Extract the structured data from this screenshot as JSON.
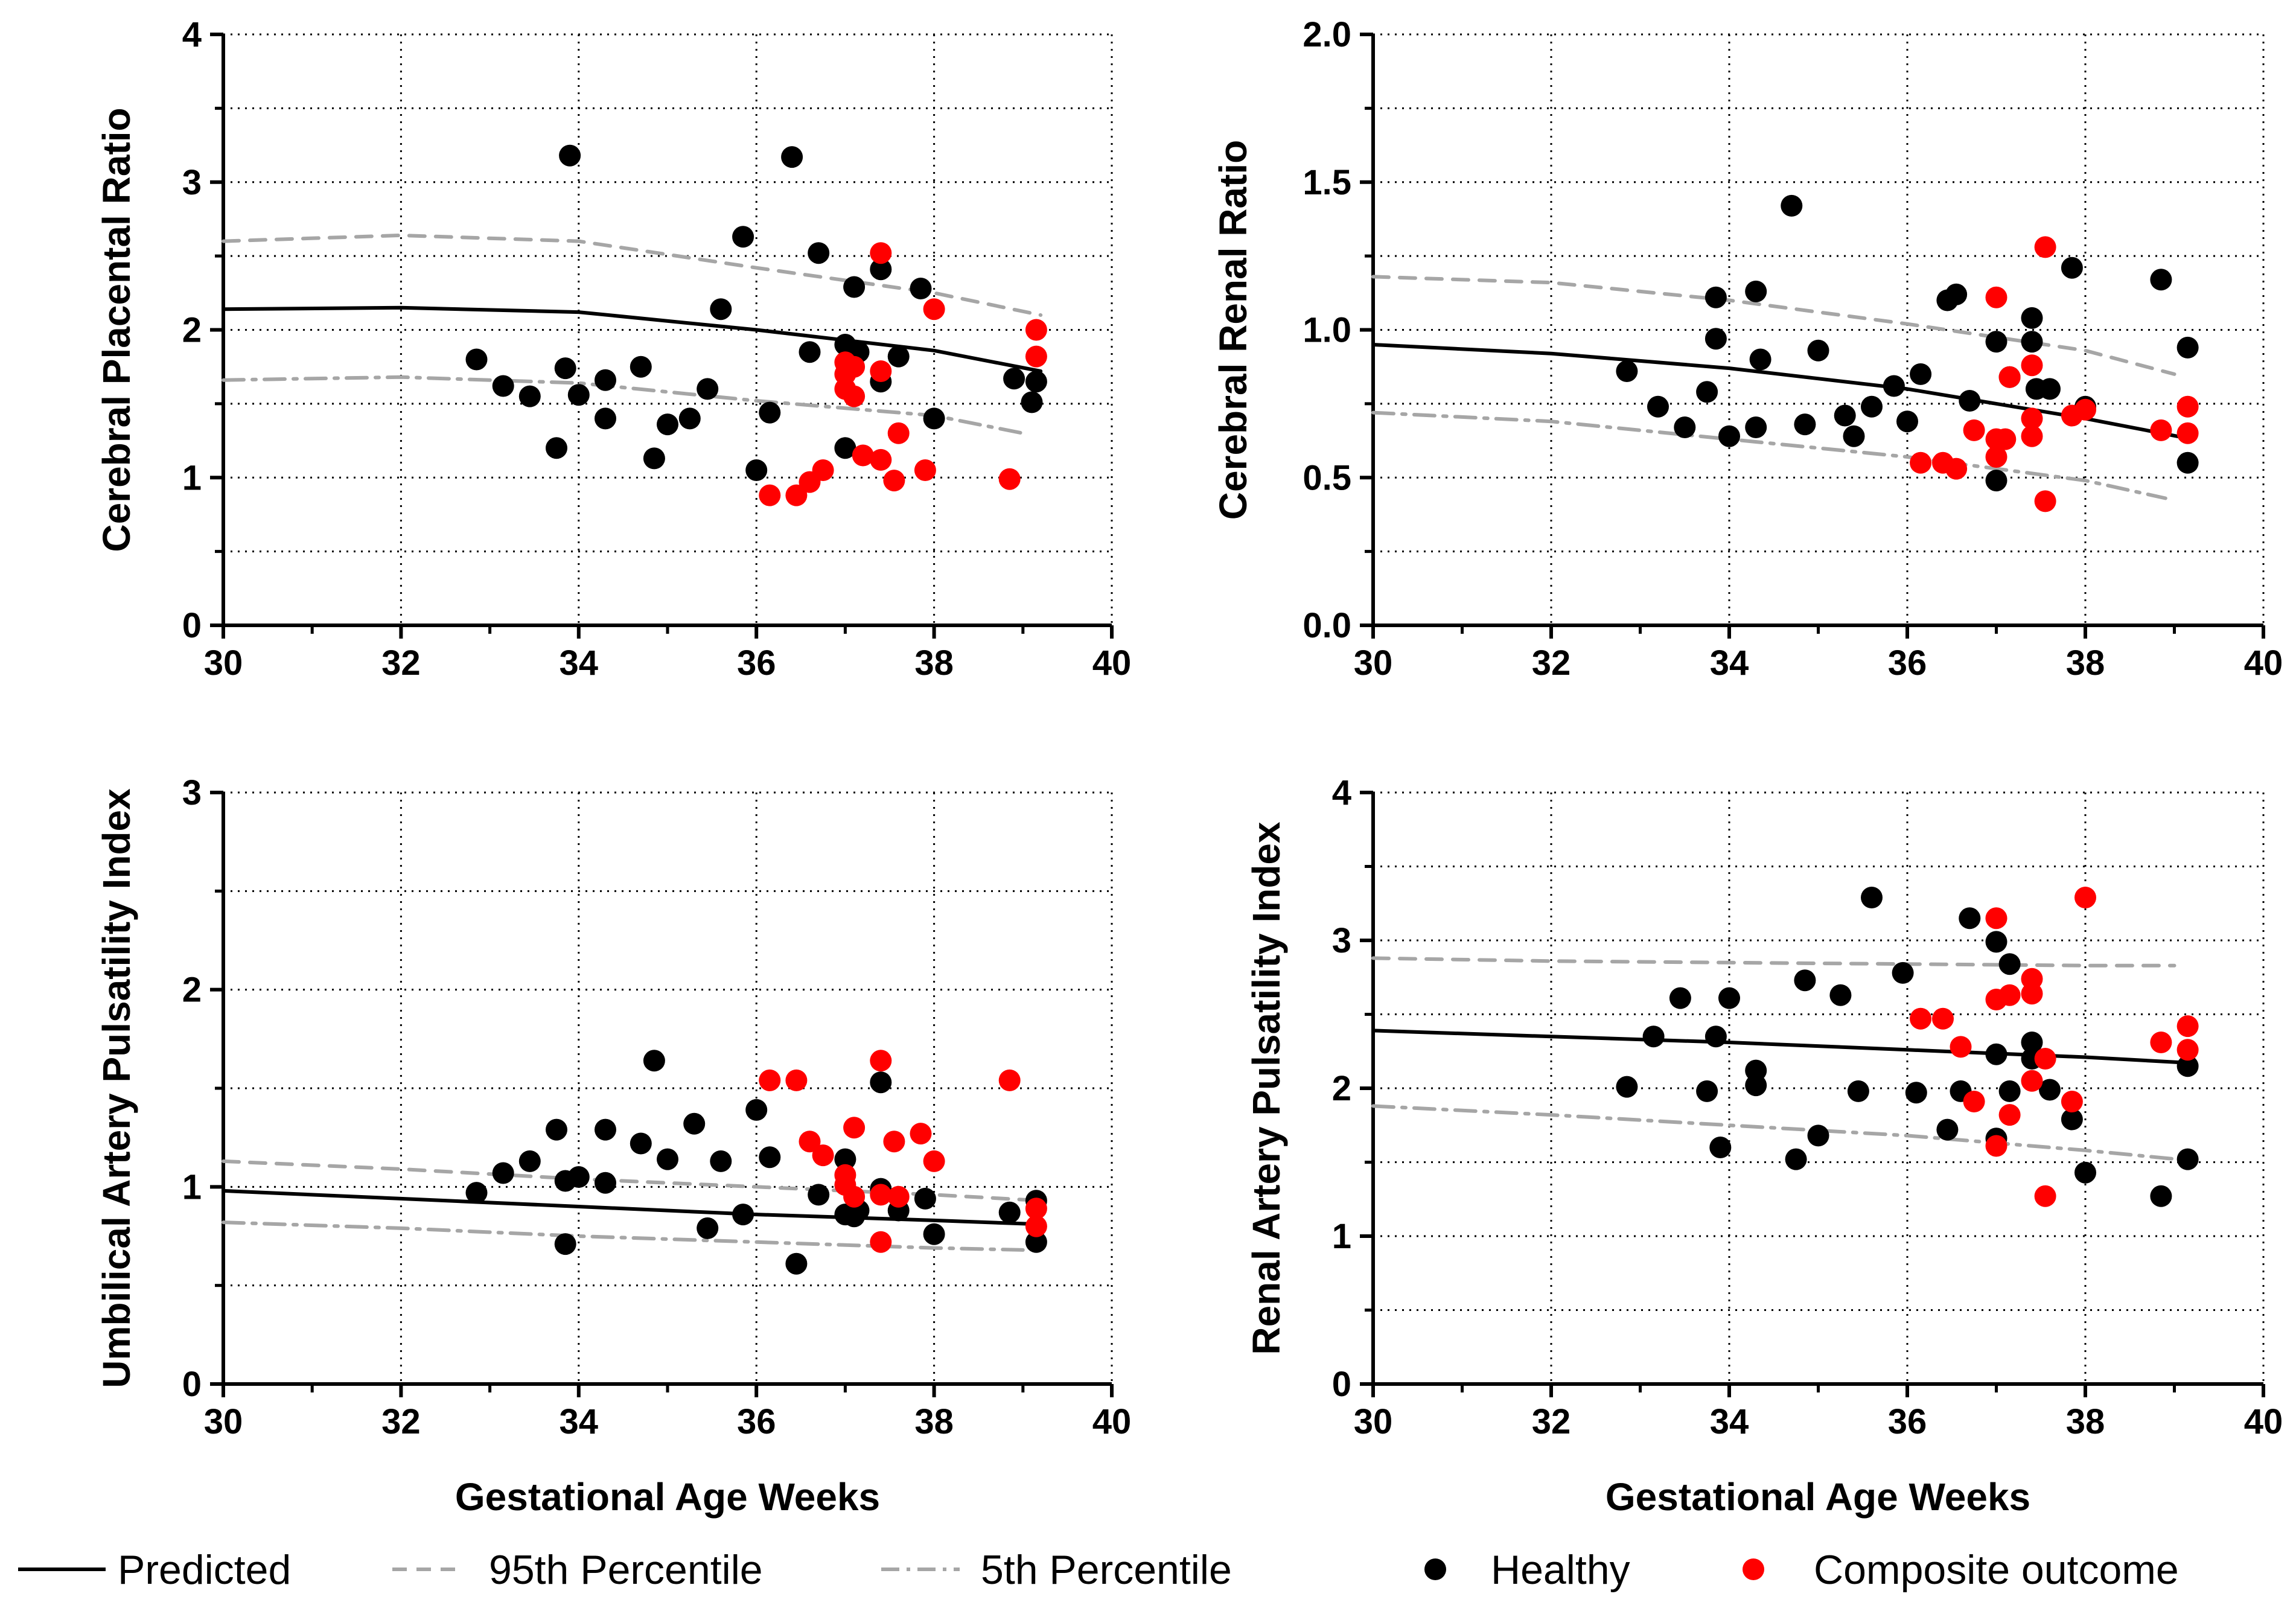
{
  "colors": {
    "healthy": "#000000",
    "composite": "#ff0000",
    "predicted": "#000000",
    "percentile": "#a6a6a6",
    "grid": "#000000"
  },
  "legend": {
    "items": [
      {
        "key": "predicted",
        "label": "Predicted",
        "style": "solid-line"
      },
      {
        "key": "p95",
        "label": "95th Percentile",
        "style": "dashed-line"
      },
      {
        "key": "p5",
        "label": "5th Percentile",
        "style": "dash-dot-line"
      },
      {
        "key": "healthy",
        "label": "Healthy",
        "style": "black-dot"
      },
      {
        "key": "composite",
        "label": "Composite outcome",
        "style": "red-dot"
      }
    ]
  },
  "chart_data": [
    {
      "type": "scatter",
      "ylabel": "Cerebral  Placental  Ratio",
      "xlabel": "",
      "xlim": [
        30,
        40
      ],
      "ylim": [
        0,
        4
      ],
      "x_ticks": [
        "30",
        "32",
        "34",
        "36",
        "38",
        "40"
      ],
      "y_ticks": [
        "0",
        "1",
        "2",
        "3",
        "4"
      ],
      "grid": "dotted",
      "curves": {
        "predicted": {
          "x": [
            30,
            32,
            34,
            36,
            38,
            39.2
          ],
          "y": [
            2.14,
            2.15,
            2.12,
            2.0,
            1.86,
            1.72
          ]
        },
        "p95": {
          "x": [
            30,
            32,
            34,
            36,
            38,
            39.2
          ],
          "y": [
            2.6,
            2.64,
            2.6,
            2.42,
            2.25,
            2.1
          ]
        },
        "p5": {
          "x": [
            30,
            32,
            34,
            36,
            38,
            39.0
          ],
          "y": [
            1.66,
            1.68,
            1.64,
            1.52,
            1.42,
            1.3
          ]
        }
      },
      "series": [
        {
          "name": "Healthy",
          "x": [
            33.9,
            36.4,
            35.85,
            36.7,
            37.1,
            37.4,
            37.85,
            35.6,
            32.85,
            33.15,
            33.45,
            33.75,
            33.85,
            34.0,
            34.3,
            34.3,
            34.7,
            34.85,
            35.0,
            35.25,
            35.45,
            36.0,
            36.15,
            36.6,
            37.0,
            37.0,
            37.15,
            37.4,
            37.6,
            38.0,
            38.9,
            39.1,
            39.15
          ],
          "y": [
            3.18,
            3.17,
            2.63,
            2.52,
            2.29,
            2.41,
            2.28,
            2.14,
            1.8,
            1.62,
            1.55,
            1.2,
            1.74,
            1.56,
            1.66,
            1.4,
            1.75,
            1.13,
            1.36,
            1.4,
            1.6,
            1.05,
            1.44,
            1.85,
            1.9,
            1.2,
            1.85,
            1.65,
            1.82,
            1.4,
            1.67,
            1.51,
            1.65
          ]
        },
        {
          "name": "Composite outcome",
          "x": [
            37.4,
            38.0,
            39.15,
            39.15,
            37.0,
            37.1,
            37.4,
            37.0,
            37.1,
            37.6,
            37.2,
            37.4,
            37.55,
            37.9,
            36.75,
            36.6,
            36.15,
            36.45,
            38.85,
            37.0
          ],
          "y": [
            2.52,
            2.14,
            2.0,
            1.82,
            1.7,
            1.75,
            1.72,
            1.6,
            1.55,
            1.3,
            1.15,
            1.12,
            0.98,
            1.05,
            1.05,
            0.97,
            0.88,
            0.88,
            0.99,
            1.78
          ]
        }
      ]
    },
    {
      "type": "scatter",
      "ylabel": "Cerebral  Renal  Ratio",
      "xlabel": "",
      "xlim": [
        30,
        40
      ],
      "ylim": [
        0,
        2
      ],
      "x_ticks": [
        "30",
        "32",
        "34",
        "36",
        "38",
        "40"
      ],
      "y_ticks": [
        "0.0",
        "0.5",
        "1.0",
        "1.5",
        "2.0"
      ],
      "grid": "dotted",
      "curves": {
        "predicted": {
          "x": [
            30,
            32,
            34,
            36,
            38,
            39.2
          ],
          "y": [
            0.95,
            0.92,
            0.87,
            0.8,
            0.7,
            0.63
          ]
        },
        "p95": {
          "x": [
            30,
            32,
            34,
            36,
            38,
            39.0
          ],
          "y": [
            1.18,
            1.16,
            1.1,
            1.02,
            0.93,
            0.85
          ]
        },
        "p5": {
          "x": [
            30,
            32,
            34,
            36,
            38,
            38.9
          ],
          "y": [
            0.72,
            0.69,
            0.63,
            0.57,
            0.49,
            0.43
          ]
        }
      },
      "series": [
        {
          "name": "Healthy",
          "x": [
            34.7,
            37.85,
            38.85,
            39.15,
            33.85,
            34.3,
            36.45,
            36.55,
            37.4,
            37.4,
            32.85,
            33.2,
            33.5,
            33.75,
            33.85,
            34.0,
            34.3,
            34.35,
            35.0,
            34.85,
            35.3,
            35.4,
            35.6,
            35.85,
            36.0,
            36.15,
            36.7,
            37.0,
            37.0,
            37.15,
            37.45,
            37.6,
            38.0,
            39.15
          ],
          "y": [
            1.42,
            1.21,
            1.17,
            0.94,
            1.11,
            1.13,
            1.1,
            1.12,
            1.04,
            0.96,
            0.86,
            0.74,
            0.67,
            0.79,
            0.97,
            0.64,
            0.67,
            0.9,
            0.93,
            0.68,
            0.71,
            0.64,
            0.74,
            0.81,
            0.69,
            0.85,
            0.76,
            0.96,
            0.49,
            0.84,
            0.8,
            0.8,
            0.74,
            0.55
          ]
        },
        {
          "name": "Composite outcome",
          "x": [
            37.55,
            37.0,
            37.15,
            37.4,
            37.4,
            37.4,
            37.0,
            37.1,
            36.75,
            36.15,
            36.4,
            36.55,
            37.0,
            38.0,
            37.85,
            38.85,
            39.15,
            39.15,
            37.55
          ],
          "y": [
            1.28,
            1.11,
            0.84,
            0.88,
            0.7,
            0.64,
            0.63,
            0.63,
            0.66,
            0.55,
            0.55,
            0.53,
            0.57,
            0.73,
            0.71,
            0.66,
            0.74,
            0.65,
            0.42
          ]
        }
      ]
    },
    {
      "type": "scatter",
      "ylabel": "Umbilical Artery Pulsatility Index",
      "xlabel": "Gestational Age Weeks",
      "xlim": [
        30,
        40
      ],
      "ylim": [
        0,
        3
      ],
      "x_ticks": [
        "30",
        "32",
        "34",
        "36",
        "38",
        "40"
      ],
      "y_ticks": [
        "0",
        "1",
        "2",
        "3"
      ],
      "grid": "dotted",
      "curves": {
        "predicted": {
          "x": [
            30,
            32,
            34,
            36,
            38,
            39.2
          ],
          "y": [
            0.98,
            0.94,
            0.9,
            0.86,
            0.83,
            0.81
          ]
        },
        "p95": {
          "x": [
            30,
            32,
            34,
            36,
            38,
            39.2
          ],
          "y": [
            1.13,
            1.09,
            1.04,
            1.0,
            0.96,
            0.93
          ]
        },
        "p5": {
          "x": [
            30,
            32,
            34,
            36,
            38,
            39.0
          ],
          "y": [
            0.82,
            0.79,
            0.75,
            0.72,
            0.69,
            0.68
          ]
        }
      },
      "series": [
        {
          "name": "Healthy",
          "x": [
            34.85,
            37.4,
            32.85,
            33.15,
            33.45,
            33.75,
            33.85,
            34.0,
            34.3,
            34.3,
            34.7,
            35.0,
            35.3,
            35.6,
            35.45,
            35.85,
            36.0,
            36.15,
            36.7,
            37.0,
            37.0,
            37.1,
            37.15,
            37.4,
            37.6,
            37.9,
            38.0,
            38.85,
            39.15,
            39.15,
            33.85,
            36.45
          ],
          "y": [
            1.64,
            1.53,
            0.97,
            1.07,
            1.13,
            1.29,
            1.03,
            1.05,
            1.29,
            1.02,
            1.22,
            1.14,
            1.32,
            1.13,
            0.79,
            0.86,
            1.39,
            1.15,
            0.96,
            1.14,
            0.86,
            0.85,
            0.88,
            0.99,
            0.88,
            0.94,
            0.76,
            0.87,
            0.93,
            0.72,
            0.71,
            0.61
          ]
        },
        {
          "name": "Composite outcome",
          "x": [
            37.4,
            36.15,
            36.45,
            38.85,
            37.1,
            37.85,
            37.55,
            36.6,
            36.75,
            38.0,
            37.0,
            37.0,
            37.1,
            37.4,
            37.6,
            39.15,
            39.15,
            37.4
          ],
          "y": [
            1.64,
            1.54,
            1.54,
            1.54,
            1.3,
            1.27,
            1.23,
            1.23,
            1.16,
            1.13,
            1.06,
            1.01,
            0.95,
            0.96,
            0.95,
            0.89,
            0.8,
            0.72
          ]
        }
      ]
    },
    {
      "type": "scatter",
      "ylabel": "Renal Artery Pulsatility Index",
      "xlabel": "Gestational Age Weeks",
      "xlim": [
        30,
        40
      ],
      "ylim": [
        0,
        4
      ],
      "x_ticks": [
        "30",
        "32",
        "34",
        "36",
        "38",
        "40"
      ],
      "y_ticks": [
        "0",
        "1",
        "2",
        "3",
        "4"
      ],
      "grid": "dotted",
      "curves": {
        "predicted": {
          "x": [
            30,
            32,
            34,
            36,
            38,
            39.2
          ],
          "y": [
            2.39,
            2.35,
            2.31,
            2.26,
            2.21,
            2.17
          ]
        },
        "p95": {
          "x": [
            30,
            32,
            34,
            36,
            38,
            39.0
          ],
          "y": [
            2.88,
            2.86,
            2.85,
            2.84,
            2.83,
            2.83
          ]
        },
        "p5": {
          "x": [
            30,
            32,
            34,
            36,
            38,
            39.2
          ],
          "y": [
            1.88,
            1.82,
            1.75,
            1.68,
            1.58,
            1.51
          ]
        }
      },
      "series": [
        {
          "name": "Healthy",
          "x": [
            35.6,
            36.7,
            37.0,
            37.15,
            35.95,
            34.85,
            35.25,
            33.45,
            34.0,
            33.15,
            33.85,
            34.3,
            34.3,
            32.85,
            33.75,
            35.45,
            36.1,
            36.45,
            36.6,
            37.0,
            37.15,
            37.4,
            37.6,
            37.85,
            38.0,
            38.85,
            39.15,
            39.15,
            33.9,
            34.75,
            35.0,
            37.0,
            37.4
          ],
          "y": [
            3.29,
            3.15,
            2.99,
            2.84,
            2.78,
            2.73,
            2.63,
            2.61,
            2.61,
            2.35,
            2.35,
            2.12,
            2.02,
            2.01,
            1.98,
            1.98,
            1.97,
            1.72,
            1.98,
            2.23,
            1.98,
            2.31,
            1.99,
            1.79,
            1.43,
            1.27,
            2.15,
            1.52,
            1.6,
            1.52,
            1.68,
            1.66,
            2.2
          ]
        },
        {
          "name": "Composite outcome",
          "x": [
            38.0,
            37.0,
            37.15,
            37.4,
            37.4,
            37.0,
            36.15,
            36.4,
            39.15,
            38.85,
            39.15,
            36.6,
            37.55,
            37.4,
            36.75,
            37.85,
            37.15,
            37.0,
            37.55
          ],
          "y": [
            3.29,
            3.15,
            2.63,
            2.74,
            2.64,
            2.6,
            2.47,
            2.47,
            2.42,
            2.31,
            2.26,
            2.28,
            2.2,
            2.05,
            1.91,
            1.91,
            1.82,
            1.61,
            1.27
          ]
        }
      ]
    }
  ]
}
